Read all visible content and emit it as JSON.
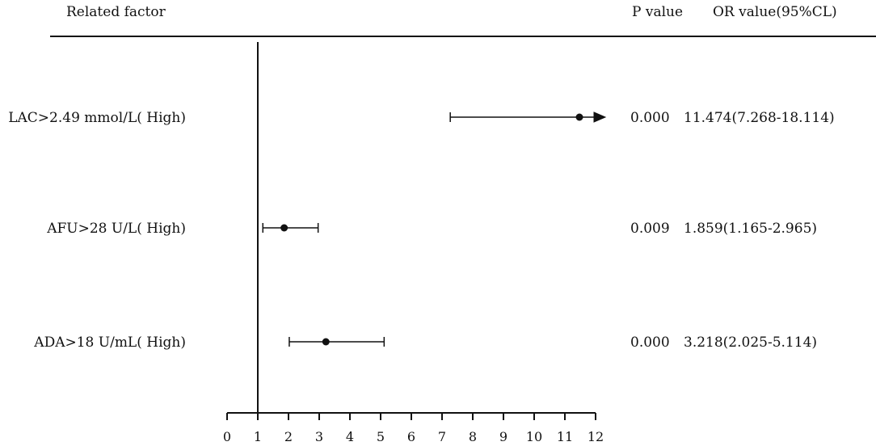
{
  "header": {
    "factor_label": "Related factor",
    "p_label": "P value",
    "or_label": "OR value(95%CL)"
  },
  "chart_data": {
    "type": "forest",
    "title": "",
    "xlabel": "",
    "ylabel": "",
    "xlim": [
      0,
      12
    ],
    "x_ticks": [
      0,
      1,
      2,
      3,
      4,
      5,
      6,
      7,
      8,
      9,
      10,
      11,
      12
    ],
    "reference_line": 1,
    "colors": {
      "ink": "#111111"
    },
    "rows": [
      {
        "label": "LAC>2.49 mmol/L( High)",
        "p_value": "0.000",
        "or_text": "11.474(7.268-18.114)",
        "or": 11.474,
        "ci_low": 7.268,
        "ci_high": 18.114,
        "truncated_high": true
      },
      {
        "label": "AFU>28 U/L( High)",
        "p_value": "0.009",
        "or_text": "1.859(1.165-2.965)",
        "or": 1.859,
        "ci_low": 1.165,
        "ci_high": 2.965,
        "truncated_high": false
      },
      {
        "label": "ADA>18 U/mL( High)",
        "p_value": "0.000",
        "or_text": "3.218(2.025-5.114)",
        "or": 3.218,
        "ci_low": 2.025,
        "ci_high": 5.114,
        "truncated_high": false
      }
    ]
  }
}
